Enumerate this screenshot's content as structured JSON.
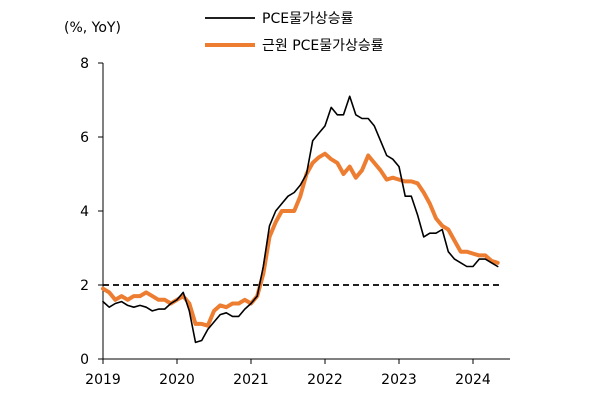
{
  "chart_data": {
    "type": "line",
    "unit_label": "(%, YoY)",
    "xlabel": "",
    "ylabel": "",
    "ylim": [
      0,
      8
    ],
    "xlim": [
      2019.0,
      2024.5
    ],
    "y_ticks": [
      "0",
      "2",
      "4",
      "6",
      "8"
    ],
    "x_ticks": [
      "2019",
      "2020",
      "2021",
      "2022",
      "2023",
      "2024"
    ],
    "grid": false,
    "legend_position": "top-center",
    "reference_line": {
      "y": 2,
      "style": "dashed",
      "color": "#000000"
    },
    "series": [
      {
        "name": "PCE물가상승률",
        "color": "#000000",
        "width": 1.6,
        "x_start": 2019.0,
        "x_step": 0.08333,
        "values": [
          1.55,
          1.4,
          1.5,
          1.55,
          1.45,
          1.4,
          1.45,
          1.4,
          1.3,
          1.35,
          1.35,
          1.5,
          1.6,
          1.8,
          1.3,
          0.45,
          0.5,
          0.8,
          1.0,
          1.2,
          1.25,
          1.15,
          1.15,
          1.35,
          1.5,
          1.7,
          2.5,
          3.6,
          4.0,
          4.2,
          4.4,
          4.5,
          4.7,
          5.0,
          5.9,
          6.1,
          6.3,
          6.8,
          6.6,
          6.6,
          7.1,
          6.6,
          6.5,
          6.5,
          6.3,
          5.9,
          5.5,
          5.4,
          5.2,
          4.4,
          4.4,
          3.9,
          3.3,
          3.4,
          3.4,
          3.5,
          2.9,
          2.7,
          2.6,
          2.5,
          2.5,
          2.7,
          2.7,
          2.6,
          2.5
        ]
      },
      {
        "name": "근원 PCE물가상승률",
        "color": "#ED7D31",
        "width": 4,
        "x_start": 2019.0,
        "x_step": 0.08333,
        "values": [
          1.9,
          1.8,
          1.6,
          1.7,
          1.6,
          1.7,
          1.7,
          1.8,
          1.7,
          1.6,
          1.6,
          1.5,
          1.6,
          1.7,
          1.5,
          0.95,
          0.95,
          0.9,
          1.3,
          1.45,
          1.4,
          1.5,
          1.5,
          1.6,
          1.5,
          1.7,
          2.3,
          3.3,
          3.7,
          4.0,
          4.0,
          4.0,
          4.4,
          5.0,
          5.3,
          5.45,
          5.55,
          5.4,
          5.3,
          5.0,
          5.2,
          4.9,
          5.1,
          5.5,
          5.3,
          5.1,
          4.85,
          4.9,
          4.85,
          4.8,
          4.8,
          4.75,
          4.5,
          4.2,
          3.8,
          3.6,
          3.5,
          3.2,
          2.9,
          2.9,
          2.85,
          2.8,
          2.8,
          2.65,
          2.6
        ]
      }
    ]
  }
}
